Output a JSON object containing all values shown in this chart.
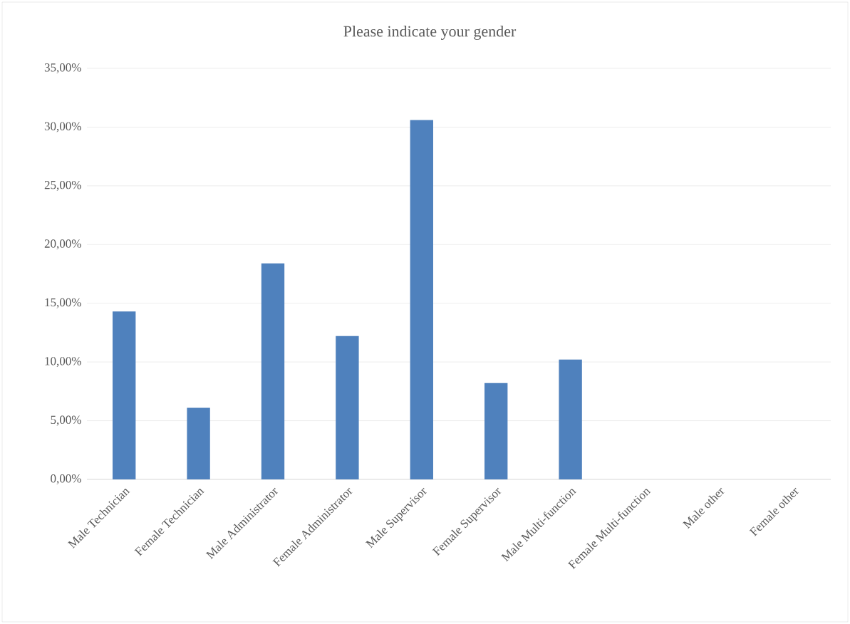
{
  "chart_data": {
    "type": "bar",
    "title": "Please indicate your gender",
    "categories": [
      "Male Technician",
      "Female Technician",
      "Male Administrator",
      "Female Administrator",
      "Male Supervisor",
      "Female Supervisor",
      "Male Multi-function",
      "Female Multi-function",
      "Male other",
      "Female other"
    ],
    "values": [
      14.3,
      6.1,
      18.4,
      12.2,
      30.6,
      8.2,
      10.2,
      0,
      0,
      0
    ],
    "color": "#4f81bd",
    "ylim": [
      0,
      35
    ],
    "yticks": [
      {
        "value": 0,
        "label": "0,00%"
      },
      {
        "value": 5,
        "label": "5,00%"
      },
      {
        "value": 10,
        "label": "10,00%"
      },
      {
        "value": 15,
        "label": "15,00%"
      },
      {
        "value": 20,
        "label": "20,00%"
      },
      {
        "value": 25,
        "label": "25,00%"
      },
      {
        "value": 30,
        "label": "30,00%"
      },
      {
        "value": 35,
        "label": "35,00%"
      }
    ],
    "grid": "y"
  }
}
